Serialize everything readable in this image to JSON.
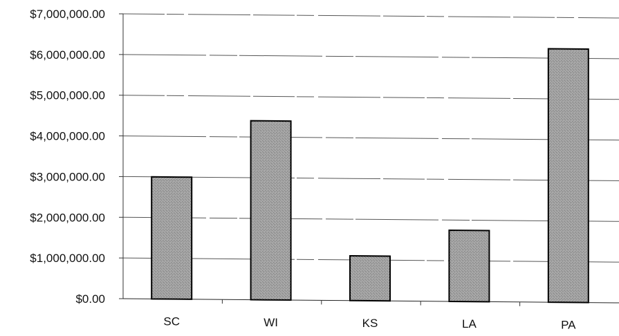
{
  "chart_data": {
    "type": "bar",
    "title": "",
    "xlabel": "",
    "ylabel": "",
    "categories": [
      "SC",
      "WI",
      "KS",
      "LA",
      "PA"
    ],
    "values": [
      3000000,
      4400000,
      1100000,
      1750000,
      6230000
    ],
    "ylim": [
      0,
      7000000
    ],
    "yticks": [
      0,
      1000000,
      2000000,
      3000000,
      4000000,
      5000000,
      6000000,
      7000000
    ],
    "ytick_labels": [
      "$0.00",
      "$1,000,000.00",
      "$2,000,000.00",
      "$3,000,000.00",
      "$4,000,000.00",
      "$5,000,000.00",
      "$6,000,000.00",
      "$7,000,000.00"
    ],
    "grid": true,
    "legend": "none",
    "bar_color": "#9a9a9a",
    "bar_edge_color": "#000000",
    "gridline_color": "#555555"
  }
}
